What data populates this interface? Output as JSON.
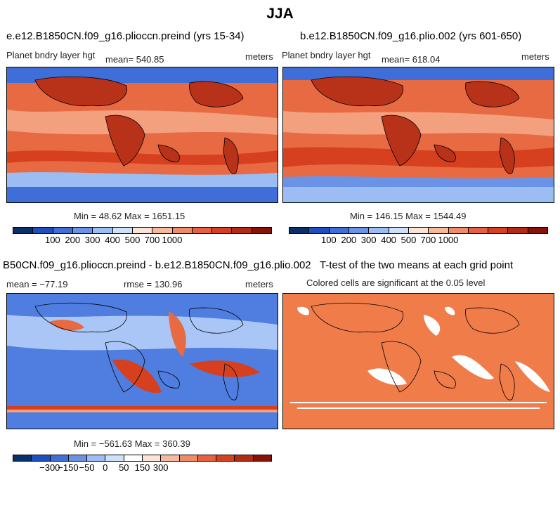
{
  "figure": {
    "title": "JJA"
  },
  "panels": {
    "p1": {
      "title": "e.e12.B1850CN.f09_g16.plioccn.preind (yrs 15-34)",
      "variable": "Planet bndry layer hgt",
      "mean": "mean= 540.85",
      "units": "meters",
      "minmax": "Min =  48.62 Max = 1651.15"
    },
    "p2": {
      "title": "b.e12.B1850CN.f09_g16.plio.002 (yrs 601-650)",
      "variable": "Planet bndry layer hgt",
      "mean": "mean= 618.04",
      "units": "meters",
      "minmax": "Min = 146.15 Max = 1544.49"
    },
    "p3": {
      "title": "B50CN.f09_g16.plioccn.preind - b.e12.B1850CN.f09_g16.plio.002",
      "mean": "mean = −77.19",
      "rmse": "rmse = 130.96",
      "units": "meters",
      "minmax": "Min = −561.63 Max = 360.39"
    },
    "p4": {
      "title": "T-test of the two means at each grid point",
      "subtitle": "Colored cells are significant at the 0.05 level"
    }
  },
  "colorbars": {
    "abs": {
      "colors": [
        "#08306b",
        "#1e4fc0",
        "#3f6ed8",
        "#6a93e8",
        "#9cbcf4",
        "#cfe0fb",
        "#fbe3d6",
        "#f7b99c",
        "#f08b65",
        "#e8613e",
        "#d7401f",
        "#b52a12",
        "#8a1105"
      ],
      "ticks": [
        {
          "label": "100",
          "frac": 0.154
        },
        {
          "label": "200",
          "frac": 0.231
        },
        {
          "label": "300",
          "frac": 0.308
        },
        {
          "label": "400",
          "frac": 0.385
        },
        {
          "label": "500",
          "frac": 0.462
        },
        {
          "label": "700",
          "frac": 0.538
        },
        {
          "label": "1000",
          "frac": 0.615
        }
      ]
    },
    "diff": {
      "colors": [
        "#08306b",
        "#1e4fc0",
        "#3f6ed8",
        "#6a93e8",
        "#9cbcf4",
        "#cfe0fb",
        "#ffffff",
        "#fbe3d6",
        "#f7b99c",
        "#f08b65",
        "#e8613e",
        "#d7401f",
        "#b52a12",
        "#8a1105"
      ],
      "ticks": [
        {
          "label": "−300",
          "frac": 0.143
        },
        {
          "label": "−150",
          "frac": 0.214
        },
        {
          "label": "−50",
          "frac": 0.286
        },
        {
          "label": "0",
          "frac": 0.357
        },
        {
          "label": "50",
          "frac": 0.429
        },
        {
          "label": "150",
          "frac": 0.5
        },
        {
          "label": "300",
          "frac": 0.571
        }
      ]
    }
  },
  "map_colors": {
    "ocean_red": "#e86a43",
    "ocean_light": "#f3a07e",
    "land_dark": "#b8321a",
    "ice_blue": "#3f6ed8",
    "diff_blue": "#4f7de0",
    "diff_light": "#a9c6f6",
    "ttest_fill": "#f07c4a"
  }
}
